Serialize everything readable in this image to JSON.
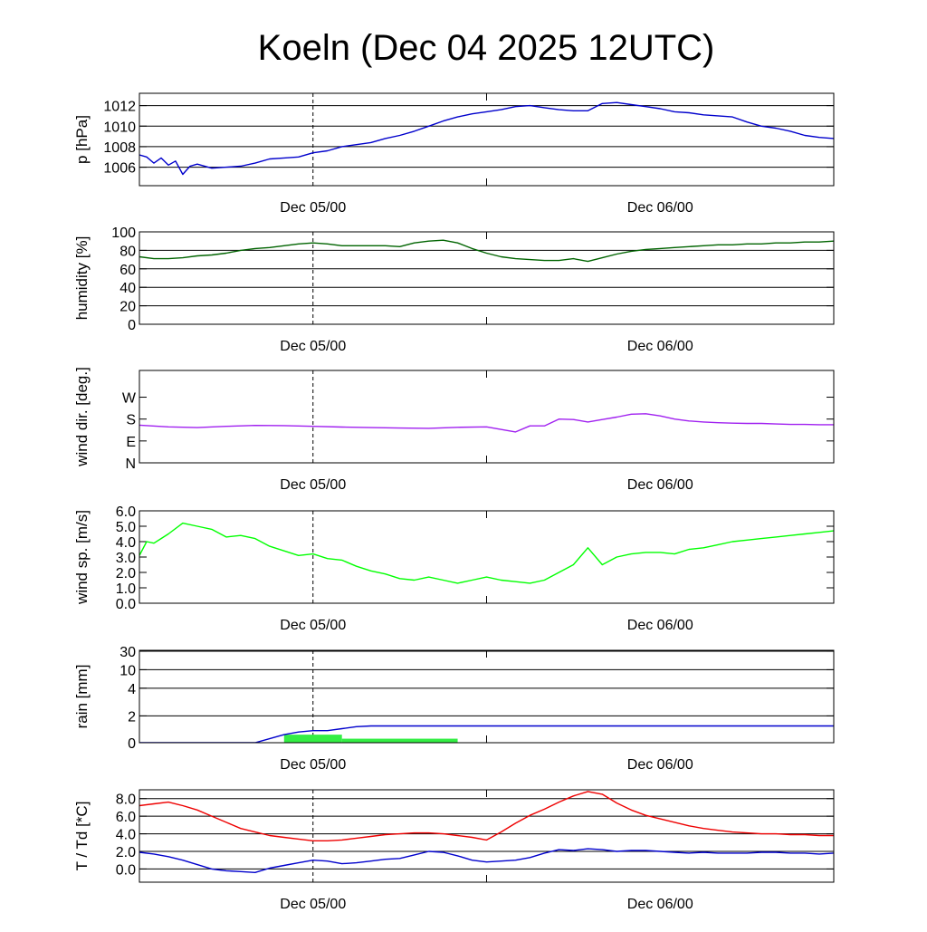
{
  "title": "Koeln (Dec 04 2025 12UTC)",
  "colors": {
    "pressure": "#0000cc",
    "humidity": "#006400",
    "wind_dir": "#a020f0",
    "wind_speed": "#00ff00",
    "rain_bar": "#33ee44",
    "rain_line": "#0000cc",
    "temperature": "#ee0000",
    "dewpoint": "#0000cc"
  },
  "chart_data": [
    {
      "type": "line",
      "ylabel": "p [hPa]",
      "x_ticks": [
        "Dec 05/00",
        "Dec 06/00"
      ],
      "x_tick_hours": [
        12,
        36
      ],
      "x_range_hours": [
        0,
        48
      ],
      "ylim": [
        1004.2,
        1013.2
      ],
      "y_ticks": [
        "1006",
        "1008",
        "1010",
        "1012"
      ],
      "y_tick_values": [
        1006,
        1008,
        1010,
        1012
      ],
      "grid": true,
      "series": [
        {
          "color_key": "pressure",
          "x": [
            0,
            0.5,
            1,
            1.5,
            2,
            2.5,
            3,
            3.5,
            4,
            5,
            6,
            7,
            8,
            9,
            10,
            11,
            12,
            13,
            14,
            15,
            16,
            17,
            18,
            19,
            20,
            21,
            22,
            23,
            24,
            25,
            26,
            27,
            28,
            29,
            30,
            31,
            32,
            33,
            34,
            35,
            36,
            37,
            38,
            39,
            40,
            41,
            42,
            43,
            44,
            45,
            46,
            47,
            48
          ],
          "values": [
            1007.2,
            1007.0,
            1006.4,
            1006.9,
            1006.2,
            1006.6,
            1005.3,
            1006.1,
            1006.3,
            1005.9,
            1006.0,
            1006.1,
            1006.4,
            1006.8,
            1006.9,
            1007.0,
            1007.4,
            1007.6,
            1008.0,
            1008.2,
            1008.4,
            1008.8,
            1009.1,
            1009.5,
            1010.0,
            1010.5,
            1010.9,
            1011.2,
            1011.4,
            1011.6,
            1011.9,
            1012.0,
            1011.8,
            1011.6,
            1011.5,
            1011.5,
            1012.2,
            1012.3,
            1012.1,
            1011.9,
            1011.7,
            1011.4,
            1011.3,
            1011.1,
            1011.0,
            1010.9,
            1010.4,
            1010.0,
            1009.8,
            1009.5,
            1009.1,
            1008.9,
            1008.8
          ]
        }
      ]
    },
    {
      "type": "line",
      "ylabel": "humidity [%]",
      "x_ticks": [
        "Dec 05/00",
        "Dec 06/00"
      ],
      "x_tick_hours": [
        12,
        36
      ],
      "x_range_hours": [
        0,
        48
      ],
      "ylim": [
        0,
        100
      ],
      "y_ticks": [
        "0",
        "20",
        "40",
        "60",
        "80",
        "100"
      ],
      "y_tick_values": [
        0,
        20,
        40,
        60,
        80,
        100
      ],
      "grid": true,
      "series": [
        {
          "color_key": "humidity",
          "x": [
            0,
            1,
            2,
            3,
            4,
            5,
            6,
            7,
            8,
            9,
            10,
            11,
            12,
            13,
            14,
            15,
            16,
            17,
            18,
            19,
            20,
            21,
            22,
            23,
            24,
            25,
            26,
            27,
            28,
            29,
            30,
            31,
            32,
            33,
            34,
            35,
            36,
            37,
            38,
            39,
            40,
            41,
            42,
            43,
            44,
            45,
            46,
            47,
            48
          ],
          "values": [
            73,
            71,
            71,
            72,
            74,
            75,
            77,
            80,
            82,
            83,
            85,
            87,
            88,
            87,
            85,
            85,
            85,
            85,
            84,
            88,
            90,
            91,
            88,
            82,
            77,
            73,
            71,
            70,
            69,
            69,
            71,
            68,
            72,
            76,
            79,
            81,
            82,
            83,
            84,
            85,
            86,
            86,
            87,
            87,
            88,
            88,
            89,
            89,
            90
          ]
        }
      ]
    },
    {
      "type": "line",
      "ylabel": "wind dir. [deg.]",
      "x_ticks": [
        "Dec 05/00",
        "Dec 06/00"
      ],
      "x_tick_hours": [
        12,
        36
      ],
      "x_range_hours": [
        0,
        48
      ],
      "ylim": [
        0,
        380
      ],
      "y_ticks": [
        "N",
        "E",
        "S",
        "W"
      ],
      "y_tick_values": [
        0,
        90,
        180,
        270
      ],
      "grid": false,
      "series": [
        {
          "color_key": "wind_dir",
          "x": [
            0,
            2,
            4,
            6,
            8,
            10,
            12,
            14,
            16,
            18,
            20,
            22,
            24,
            26,
            27,
            28,
            29,
            30,
            31,
            32,
            33,
            34,
            35,
            36,
            37,
            38,
            39,
            40,
            41,
            42,
            43,
            44,
            45,
            46,
            47,
            48
          ],
          "values": [
            155,
            148,
            145,
            150,
            154,
            153,
            150,
            147,
            145,
            143,
            142,
            146,
            148,
            127,
            152,
            152,
            180,
            178,
            168,
            178,
            188,
            200,
            202,
            193,
            180,
            172,
            168,
            165,
            163,
            162,
            162,
            160,
            158,
            158,
            157,
            157
          ]
        }
      ]
    },
    {
      "type": "line",
      "ylabel": "wind sp. [m/s]",
      "x_ticks": [
        "Dec 05/00",
        "Dec 06/00"
      ],
      "x_tick_hours": [
        12,
        36
      ],
      "x_range_hours": [
        0,
        48
      ],
      "ylim": [
        0,
        6.0
      ],
      "y_ticks": [
        "0.0",
        "1.0",
        "2.0",
        "3.0",
        "4.0",
        "5.0",
        "6.0"
      ],
      "y_tick_values": [
        0,
        1,
        2,
        3,
        4,
        5,
        6
      ],
      "grid": false,
      "series": [
        {
          "color_key": "wind_speed",
          "x": [
            0,
            0.5,
            1,
            1.5,
            2,
            3,
            4,
            5,
            6,
            7,
            8,
            9,
            10,
            11,
            12,
            13,
            14,
            15,
            16,
            17,
            18,
            19,
            20,
            21,
            22,
            23,
            24,
            25,
            26,
            27,
            28,
            29,
            30,
            31,
            32,
            33,
            34,
            35,
            36,
            37,
            38,
            39,
            40,
            41,
            42,
            43,
            44,
            45,
            46,
            47,
            48
          ],
          "values": [
            3.1,
            4.0,
            3.9,
            4.2,
            4.5,
            5.2,
            5.0,
            4.8,
            4.3,
            4.4,
            4.2,
            3.7,
            3.4,
            3.1,
            3.2,
            2.9,
            2.8,
            2.4,
            2.1,
            1.9,
            1.6,
            1.5,
            1.7,
            1.5,
            1.3,
            1.5,
            1.7,
            1.5,
            1.4,
            1.3,
            1.5,
            2.0,
            2.5,
            3.6,
            2.5,
            3.0,
            3.2,
            3.3,
            3.3,
            3.2,
            3.5,
            3.6,
            3.8,
            4.0,
            4.1,
            4.2,
            4.3,
            4.4,
            4.5,
            4.6,
            4.7
          ]
        }
      ]
    },
    {
      "type": "bar",
      "ylabel": "rain [mm]",
      "x_ticks": [
        "Dec 05/00",
        "Dec 06/00"
      ],
      "x_tick_hours": [
        12,
        36
      ],
      "x_range_hours": [
        0,
        48
      ],
      "y_ticks": [
        "0",
        "2",
        "4",
        "10",
        "30"
      ],
      "y_tick_values": [
        0,
        2,
        4,
        10,
        30
      ],
      "y_scale": "nonlinear (piecewise, ticks equally spaced)",
      "grid": true,
      "bars": [
        {
          "x_start": 10,
          "x_end": 14,
          "value": 0.6
        },
        {
          "x_start": 14,
          "x_end": 22,
          "value": 0.3
        }
      ],
      "series": [
        {
          "color_key": "rain_line",
          "x": [
            0,
            8,
            9,
            10,
            11,
            12,
            13,
            14,
            15,
            16,
            20,
            24,
            30,
            36,
            42,
            48
          ],
          "values": [
            0,
            0,
            0.3,
            0.6,
            0.8,
            0.9,
            0.9,
            1.05,
            1.2,
            1.25,
            1.25,
            1.25,
            1.25,
            1.25,
            1.25,
            1.25
          ]
        }
      ]
    },
    {
      "type": "line",
      "ylabel": "T / Td [*C]",
      "x_ticks": [
        "Dec 05/00",
        "Dec 06/00"
      ],
      "x_tick_hours": [
        12,
        36
      ],
      "x_range_hours": [
        0,
        48
      ],
      "ylim": [
        -1.5,
        9.0
      ],
      "y_ticks": [
        "0.0",
        "2.0",
        "4.0",
        "6.0",
        "8.0"
      ],
      "y_tick_values": [
        0,
        2,
        4,
        6,
        8
      ],
      "grid": true,
      "series": [
        {
          "name": "T",
          "color_key": "temperature",
          "x": [
            0,
            1,
            2,
            3,
            4,
            5,
            6,
            7,
            8,
            9,
            10,
            11,
            12,
            13,
            14,
            15,
            16,
            17,
            18,
            19,
            20,
            21,
            22,
            23,
            24,
            25,
            26,
            27,
            28,
            29,
            30,
            31,
            32,
            33,
            34,
            35,
            36,
            37,
            38,
            39,
            40,
            41,
            42,
            43,
            44,
            45,
            46,
            47,
            48
          ],
          "values": [
            7.2,
            7.4,
            7.6,
            7.2,
            6.7,
            6.0,
            5.3,
            4.6,
            4.2,
            3.8,
            3.6,
            3.4,
            3.2,
            3.2,
            3.3,
            3.5,
            3.7,
            3.9,
            4.0,
            4.1,
            4.1,
            4.0,
            3.8,
            3.6,
            3.3,
            4.2,
            5.2,
            6.1,
            6.8,
            7.6,
            8.3,
            8.8,
            8.5,
            7.5,
            6.7,
            6.1,
            5.7,
            5.3,
            4.9,
            4.6,
            4.4,
            4.2,
            4.1,
            4.0,
            4.0,
            3.9,
            3.9,
            3.8,
            3.8
          ]
        },
        {
          "name": "Td",
          "color_key": "dewpoint",
          "x": [
            0,
            1,
            2,
            3,
            4,
            5,
            6,
            7,
            8,
            9,
            10,
            11,
            12,
            13,
            14,
            15,
            16,
            17,
            18,
            19,
            20,
            21,
            22,
            23,
            24,
            25,
            26,
            27,
            28,
            29,
            30,
            31,
            32,
            33,
            34,
            35,
            36,
            37,
            38,
            39,
            40,
            41,
            42,
            43,
            44,
            45,
            46,
            47,
            48
          ],
          "values": [
            1.9,
            1.7,
            1.4,
            1.0,
            0.5,
            0.0,
            -0.2,
            -0.3,
            -0.4,
            0.1,
            0.4,
            0.7,
            1.0,
            0.9,
            0.6,
            0.7,
            0.9,
            1.1,
            1.2,
            1.6,
            2.0,
            1.9,
            1.5,
            1.0,
            0.8,
            0.9,
            1.0,
            1.3,
            1.8,
            2.2,
            2.1,
            2.3,
            2.2,
            2.0,
            2.1,
            2.1,
            2.0,
            1.9,
            1.8,
            1.9,
            1.8,
            1.8,
            1.8,
            1.9,
            1.9,
            1.8,
            1.8,
            1.7,
            1.8
          ]
        }
      ]
    }
  ]
}
